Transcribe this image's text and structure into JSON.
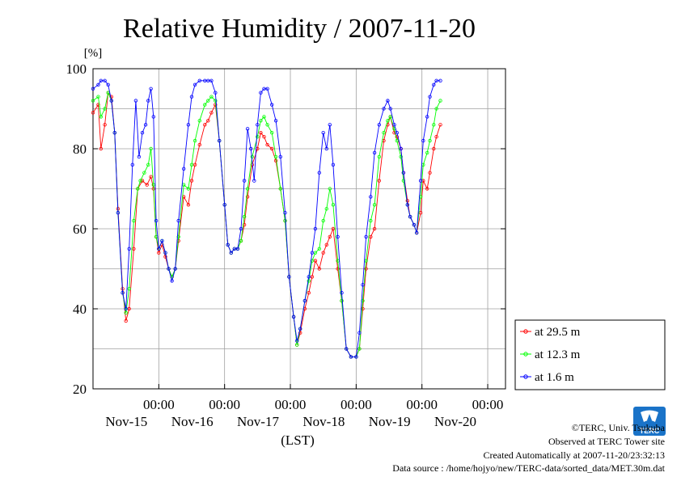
{
  "chart_data": {
    "type": "line",
    "title": "Relative Humidity / 2007-11-20",
    "ylabel": "[%]",
    "xlabel": "(LST)",
    "ylim": [
      20,
      100
    ],
    "yticks": [
      20,
      40,
      60,
      80,
      100
    ],
    "xlim": [
      0,
      6
    ],
    "xticks": [
      {
        "x": 1,
        "time": "00:00",
        "date": "Nov-15"
      },
      {
        "x": 2,
        "time": "00:00",
        "date": "Nov-16"
      },
      {
        "x": 3,
        "time": "00:00",
        "date": "Nov-17"
      },
      {
        "x": 4,
        "time": "00:00",
        "date": "Nov-18"
      },
      {
        "x": 5,
        "time": "00:00",
        "date": "Nov-19"
      },
      {
        "x": 6,
        "time": "00:00",
        "date": "Nov-20"
      }
    ],
    "grid": true,
    "legend_position": "bottom-right",
    "series": [
      {
        "name": "at 29.5 m",
        "color": "#ff0000",
        "points": [
          [
            0,
            89
          ],
          [
            0.08,
            91
          ],
          [
            0.12,
            80
          ],
          [
            0.18,
            86
          ],
          [
            0.23,
            94
          ],
          [
            0.28,
            93
          ],
          [
            0.33,
            84
          ],
          [
            0.38,
            65
          ],
          [
            0.45,
            45
          ],
          [
            0.5,
            37
          ],
          [
            0.55,
            40
          ],
          [
            0.62,
            55
          ],
          [
            0.68,
            70
          ],
          [
            0.75,
            72
          ],
          [
            0.82,
            71
          ],
          [
            0.88,
            73
          ],
          [
            0.92,
            70
          ],
          [
            0.96,
            58
          ],
          [
            1.0,
            54
          ],
          [
            1.05,
            56
          ],
          [
            1.1,
            53
          ],
          [
            1.15,
            50
          ],
          [
            1.2,
            48
          ],
          [
            1.25,
            50
          ],
          [
            1.3,
            57
          ],
          [
            1.38,
            68
          ],
          [
            1.45,
            66
          ],
          [
            1.5,
            72
          ],
          [
            1.55,
            76
          ],
          [
            1.62,
            81
          ],
          [
            1.7,
            86
          ],
          [
            1.75,
            87
          ],
          [
            1.8,
            89
          ],
          [
            1.86,
            91
          ],
          [
            1.92,
            82
          ],
          [
            2.0,
            66
          ],
          [
            2.05,
            56
          ],
          [
            2.1,
            54
          ],
          [
            2.15,
            55
          ],
          [
            2.2,
            55
          ],
          [
            2.25,
            57
          ],
          [
            2.3,
            61
          ],
          [
            2.35,
            68
          ],
          [
            2.42,
            76
          ],
          [
            2.5,
            80
          ],
          [
            2.55,
            84
          ],
          [
            2.6,
            83
          ],
          [
            2.65,
            81
          ],
          [
            2.72,
            80
          ],
          [
            2.78,
            77
          ],
          [
            2.85,
            70
          ],
          [
            2.92,
            62
          ],
          [
            2.98,
            48
          ],
          [
            3.05,
            38
          ],
          [
            3.1,
            31
          ],
          [
            3.15,
            34
          ],
          [
            3.22,
            40
          ],
          [
            3.28,
            44
          ],
          [
            3.33,
            48
          ],
          [
            3.38,
            52
          ],
          [
            3.44,
            50
          ],
          [
            3.5,
            54
          ],
          [
            3.55,
            56
          ],
          [
            3.6,
            58
          ],
          [
            3.65,
            60
          ],
          [
            3.72,
            50
          ],
          [
            3.78,
            42
          ],
          [
            3.85,
            30
          ],
          [
            3.92,
            28
          ],
          [
            4.0,
            28
          ],
          [
            4.05,
            30
          ],
          [
            4.1,
            40
          ],
          [
            4.15,
            50
          ],
          [
            4.22,
            58
          ],
          [
            4.28,
            60
          ],
          [
            4.35,
            72
          ],
          [
            4.42,
            82
          ],
          [
            4.48,
            86
          ],
          [
            4.52,
            88
          ],
          [
            4.58,
            84
          ],
          [
            4.62,
            83
          ],
          [
            4.68,
            80
          ],
          [
            4.72,
            74
          ],
          [
            4.78,
            67
          ],
          [
            4.82,
            63
          ],
          [
            4.88,
            61
          ],
          [
            4.92,
            59
          ],
          [
            4.98,
            64
          ],
          [
            5.02,
            72
          ],
          [
            5.08,
            70
          ],
          [
            5.12,
            74
          ],
          [
            5.18,
            80
          ],
          [
            5.22,
            83
          ],
          [
            5.28,
            86
          ]
        ]
      },
      {
        "name": "at 12.3 m",
        "color": "#00ff00",
        "points": [
          [
            0,
            92
          ],
          [
            0.08,
            93
          ],
          [
            0.12,
            88
          ],
          [
            0.18,
            90
          ],
          [
            0.23,
            94
          ],
          [
            0.28,
            92
          ],
          [
            0.33,
            84
          ],
          [
            0.38,
            64
          ],
          [
            0.45,
            44
          ],
          [
            0.5,
            39
          ],
          [
            0.55,
            45
          ],
          [
            0.62,
            62
          ],
          [
            0.68,
            70
          ],
          [
            0.72,
            72
          ],
          [
            0.78,
            74
          ],
          [
            0.84,
            76
          ],
          [
            0.88,
            80
          ],
          [
            0.92,
            71
          ],
          [
            0.96,
            58
          ],
          [
            1.0,
            55
          ],
          [
            1.05,
            57
          ],
          [
            1.1,
            54
          ],
          [
            1.15,
            50
          ],
          [
            1.2,
            48
          ],
          [
            1.25,
            50
          ],
          [
            1.3,
            58
          ],
          [
            1.38,
            71
          ],
          [
            1.45,
            70
          ],
          [
            1.5,
            76
          ],
          [
            1.55,
            82
          ],
          [
            1.62,
            87
          ],
          [
            1.7,
            91
          ],
          [
            1.75,
            92
          ],
          [
            1.8,
            93
          ],
          [
            1.86,
            92
          ],
          [
            1.92,
            82
          ],
          [
            2.0,
            66
          ],
          [
            2.05,
            56
          ],
          [
            2.1,
            54
          ],
          [
            2.15,
            55
          ],
          [
            2.2,
            55
          ],
          [
            2.25,
            57
          ],
          [
            2.3,
            63
          ],
          [
            2.35,
            70
          ],
          [
            2.42,
            78
          ],
          [
            2.5,
            83
          ],
          [
            2.55,
            87
          ],
          [
            2.6,
            88
          ],
          [
            2.65,
            86
          ],
          [
            2.72,
            84
          ],
          [
            2.78,
            78
          ],
          [
            2.85,
            70
          ],
          [
            2.92,
            62
          ],
          [
            2.98,
            48
          ],
          [
            3.05,
            38
          ],
          [
            3.1,
            31
          ],
          [
            3.15,
            35
          ],
          [
            3.22,
            42
          ],
          [
            3.28,
            47
          ],
          [
            3.33,
            52
          ],
          [
            3.38,
            54
          ],
          [
            3.44,
            55
          ],
          [
            3.5,
            62
          ],
          [
            3.55,
            65
          ],
          [
            3.6,
            70
          ],
          [
            3.65,
            66
          ],
          [
            3.72,
            52
          ],
          [
            3.78,
            42
          ],
          [
            3.85,
            30
          ],
          [
            3.92,
            28
          ],
          [
            4.0,
            28
          ],
          [
            4.05,
            30
          ],
          [
            4.1,
            42
          ],
          [
            4.15,
            52
          ],
          [
            4.22,
            62
          ],
          [
            4.28,
            66
          ],
          [
            4.35,
            78
          ],
          [
            4.42,
            84
          ],
          [
            4.48,
            87
          ],
          [
            4.52,
            88
          ],
          [
            4.58,
            85
          ],
          [
            4.62,
            82
          ],
          [
            4.68,
            78
          ],
          [
            4.72,
            72
          ],
          [
            4.78,
            66
          ],
          [
            4.82,
            63
          ],
          [
            4.88,
            61
          ],
          [
            4.92,
            59
          ],
          [
            4.98,
            68
          ],
          [
            5.02,
            76
          ],
          [
            5.08,
            79
          ],
          [
            5.12,
            82
          ],
          [
            5.18,
            86
          ],
          [
            5.22,
            90
          ],
          [
            5.28,
            92
          ]
        ]
      },
      {
        "name": "at 1.6 m",
        "color": "#0000ff",
        "points": [
          [
            0,
            95
          ],
          [
            0.08,
            96
          ],
          [
            0.12,
            97
          ],
          [
            0.18,
            97
          ],
          [
            0.23,
            96
          ],
          [
            0.28,
            92
          ],
          [
            0.33,
            84
          ],
          [
            0.38,
            64
          ],
          [
            0.45,
            44
          ],
          [
            0.5,
            40
          ],
          [
            0.55,
            55
          ],
          [
            0.6,
            76
          ],
          [
            0.65,
            92
          ],
          [
            0.7,
            78
          ],
          [
            0.75,
            84
          ],
          [
            0.8,
            86
          ],
          [
            0.84,
            92
          ],
          [
            0.88,
            95
          ],
          [
            0.92,
            88
          ],
          [
            0.96,
            62
          ],
          [
            1.0,
            55
          ],
          [
            1.05,
            57
          ],
          [
            1.1,
            54
          ],
          [
            1.15,
            50
          ],
          [
            1.2,
            47
          ],
          [
            1.25,
            50
          ],
          [
            1.3,
            62
          ],
          [
            1.38,
            75
          ],
          [
            1.45,
            86
          ],
          [
            1.5,
            93
          ],
          [
            1.55,
            96
          ],
          [
            1.62,
            97
          ],
          [
            1.7,
            97
          ],
          [
            1.75,
            97
          ],
          [
            1.8,
            97
          ],
          [
            1.86,
            94
          ],
          [
            1.92,
            82
          ],
          [
            2.0,
            66
          ],
          [
            2.05,
            56
          ],
          [
            2.1,
            54
          ],
          [
            2.15,
            55
          ],
          [
            2.2,
            55
          ],
          [
            2.25,
            60
          ],
          [
            2.3,
            72
          ],
          [
            2.35,
            85
          ],
          [
            2.4,
            80
          ],
          [
            2.45,
            72
          ],
          [
            2.5,
            86
          ],
          [
            2.55,
            94
          ],
          [
            2.6,
            95
          ],
          [
            2.65,
            95
          ],
          [
            2.72,
            91
          ],
          [
            2.78,
            87
          ],
          [
            2.85,
            78
          ],
          [
            2.92,
            64
          ],
          [
            2.98,
            48
          ],
          [
            3.05,
            38
          ],
          [
            3.1,
            32
          ],
          [
            3.15,
            35
          ],
          [
            3.22,
            42
          ],
          [
            3.28,
            48
          ],
          [
            3.33,
            54
          ],
          [
            3.38,
            60
          ],
          [
            3.44,
            74
          ],
          [
            3.5,
            84
          ],
          [
            3.55,
            80
          ],
          [
            3.6,
            86
          ],
          [
            3.65,
            76
          ],
          [
            3.72,
            58
          ],
          [
            3.78,
            44
          ],
          [
            3.85,
            30
          ],
          [
            3.92,
            28
          ],
          [
            4.0,
            28
          ],
          [
            4.05,
            34
          ],
          [
            4.1,
            46
          ],
          [
            4.15,
            58
          ],
          [
            4.22,
            68
          ],
          [
            4.28,
            79
          ],
          [
            4.35,
            86
          ],
          [
            4.42,
            90
          ],
          [
            4.48,
            92
          ],
          [
            4.52,
            90
          ],
          [
            4.58,
            86
          ],
          [
            4.62,
            84
          ],
          [
            4.68,
            80
          ],
          [
            4.72,
            74
          ],
          [
            4.78,
            66
          ],
          [
            4.82,
            63
          ],
          [
            4.88,
            61
          ],
          [
            4.92,
            59
          ],
          [
            4.98,
            72
          ],
          [
            5.02,
            82
          ],
          [
            5.08,
            88
          ],
          [
            5.12,
            93
          ],
          [
            5.18,
            96
          ],
          [
            5.22,
            97
          ],
          [
            5.28,
            97
          ]
        ]
      }
    ]
  },
  "footer": {
    "line1": "©TERC, Univ. Tsukuba",
    "line2": "Observed at TERC Tower site",
    "line3": "Created Automatically at 2007-11-20/23:32:13",
    "line4": "Data source : /home/hojyo/new/TERC-data/sorted_data/MET.30m.dat"
  },
  "logo": {
    "text": "TERC",
    "color": "#1a73c8"
  }
}
